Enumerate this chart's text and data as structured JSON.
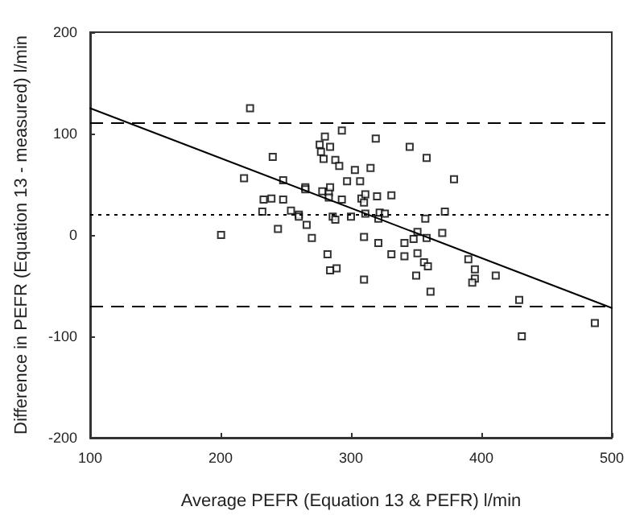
{
  "chart_data": {
    "type": "scatter",
    "xlabel": "Average PEFR (Equation 13 & PEFR) l/min",
    "ylabel": "Difference in PEFR (Equation 13 - measured) l/min",
    "xlim": [
      100,
      500
    ],
    "xticks": [
      100,
      200,
      300,
      400,
      500
    ],
    "ylim": [
      -200,
      200
    ],
    "yticks": [
      -200,
      -100,
      0,
      100,
      200
    ],
    "grid": false,
    "marker": "square",
    "series": [
      {
        "color": "#000000",
        "x": [
          222.6,
          200.4,
          218,
          240,
          233,
          239,
          232,
          248,
          248,
          244,
          254,
          260,
          260,
          265,
          265,
          266,
          270,
          276,
          277,
          279,
          280,
          284,
          278,
          283,
          284,
          283,
          286,
          288,
          282,
          284,
          289,
          288,
          291,
          293,
          293,
          297,
          300,
          303,
          307,
          308,
          310,
          311,
          310,
          310,
          311,
          315,
          319,
          320,
          321,
          322,
          321,
          326,
          331,
          331,
          341,
          341,
          345,
          348,
          351,
          351,
          350,
          356,
          357,
          358,
          359,
          358,
          361,
          372,
          370,
          379,
          390,
          395,
          395,
          393,
          411,
          429,
          431,
          487
        ],
        "values": [
          125,
          0,
          56,
          77,
          35,
          36,
          23,
          35,
          54,
          6,
          24,
          20,
          18,
          47,
          45,
          10,
          -3,
          89,
          82,
          75,
          97,
          87,
          43,
          42,
          47,
          37,
          18,
          15,
          -19,
          -35,
          -33,
          74,
          68,
          103,
          35,
          53,
          18,
          64,
          53,
          36,
          32,
          40,
          -2,
          -44,
          21,
          66,
          95,
          38,
          16,
          22,
          -8,
          21,
          39,
          -19,
          -21,
          -8,
          87,
          -4,
          3,
          -18,
          -40,
          -27,
          16,
          76,
          -31,
          -3,
          -56,
          23,
          2,
          55,
          -24,
          -34,
          -43,
          -47,
          -40,
          -64,
          -100,
          -87
        ]
      },
      {
        "type": "line",
        "color": "#000000",
        "marker": "none",
        "line_style": "solid",
        "x": [
          100,
          500
        ],
        "values": [
          125,
          -72
        ]
      }
    ],
    "ref_lines": [
      {
        "axis": "y",
        "value": 110,
        "line_style": "dashed",
        "color": "#000000"
      },
      {
        "axis": "y",
        "value": 21,
        "line_style": "dotted",
        "color": "#000000"
      },
      {
        "axis": "y",
        "value": -71,
        "line_style": "dashed",
        "color": "#000000"
      }
    ]
  }
}
